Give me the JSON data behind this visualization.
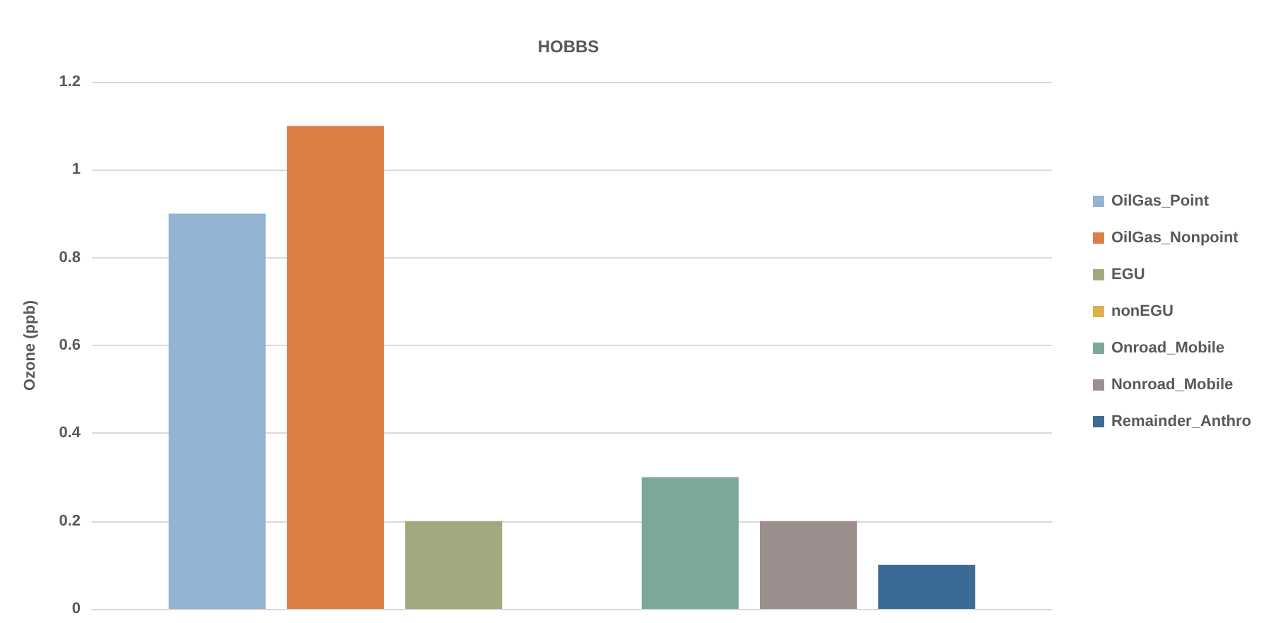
{
  "chart_data": {
    "type": "bar",
    "title": "HOBBS",
    "ylabel": "Ozone (ppb)",
    "categories": [
      null
    ],
    "series": [
      {
        "name": "OilGas_Point",
        "color": "#93b3d3",
        "values": [
          0.9
        ]
      },
      {
        "name": "OilGas_Nonpoint",
        "color": "#dc7f45",
        "values": [
          1.1
        ]
      },
      {
        "name": "EGU",
        "color": "#a3a97f",
        "values": [
          0.2
        ]
      },
      {
        "name": "nonEGU",
        "color": "#deb04f",
        "values": [
          0
        ]
      },
      {
        "name": "Onroad_Mobile",
        "color": "#7aa899",
        "values": [
          0.3
        ]
      },
      {
        "name": "Nonroad_Mobile",
        "color": "#9a8f8d",
        "values": [
          0.2
        ]
      },
      {
        "name": "Remainder_Anthro",
        "color": "#3b6a94",
        "values": [
          0.1
        ]
      }
    ],
    "ylim": [
      0,
      1.2
    ],
    "yticks": [
      0,
      0.2,
      0.4,
      0.6,
      0.8,
      1,
      1.2
    ],
    "grid": "y",
    "legend": "right"
  }
}
